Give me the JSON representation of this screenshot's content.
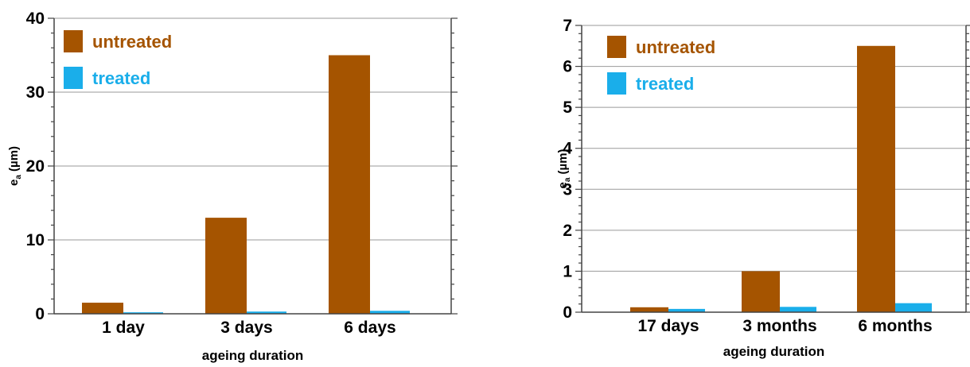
{
  "chart_data": [
    {
      "type": "bar",
      "categories": [
        "1 day",
        "3 days",
        "6 days"
      ],
      "series": [
        {
          "name": "untreated",
          "color": "#a55400",
          "values": [
            1.5,
            13,
            35
          ]
        },
        {
          "name": "treated",
          "color": "#1aaeea",
          "values": [
            0.2,
            0.3,
            0.4
          ]
        }
      ],
      "xlabel": "ageing duration",
      "ylabel_main": "e",
      "ylabel_sub": "a",
      "ylabel_unit": " (µm)",
      "ylim": [
        0,
        40
      ],
      "yticks": [
        0,
        10,
        20,
        30,
        40
      ],
      "grid": true,
      "legend_position": "top-left"
    },
    {
      "type": "bar",
      "categories": [
        "17 days",
        "3 months",
        "6 months"
      ],
      "series": [
        {
          "name": "untreated",
          "color": "#a55400",
          "values": [
            0.12,
            1.0,
            6.5
          ]
        },
        {
          "name": "treated",
          "color": "#1aaeea",
          "values": [
            0.08,
            0.13,
            0.22
          ]
        }
      ],
      "xlabel": "ageing duration",
      "ylabel_main": "e",
      "ylabel_sub": "a",
      "ylabel_unit": " (µm)",
      "ylim": [
        0,
        7
      ],
      "yticks": [
        0,
        1,
        2,
        3,
        4,
        5,
        6,
        7
      ],
      "grid": true,
      "legend_position": "top-left"
    }
  ]
}
